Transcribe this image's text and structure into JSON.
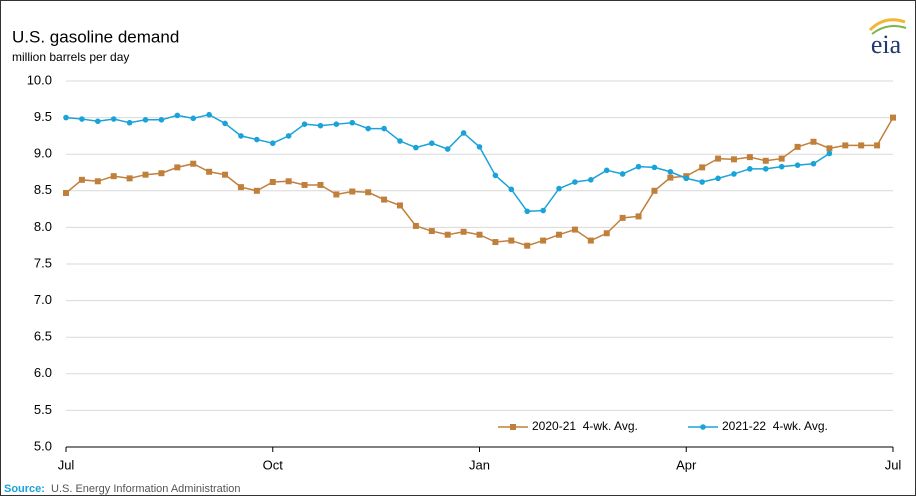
{
  "chart_data": {
    "type": "line",
    "title": "U.S. gasoline demand",
    "subtitle": "million barrels per day",
    "logo": "eia",
    "source_label": "Source:",
    "source": "U.S. Energy Information Administration",
    "categories": [
      "Jul",
      null,
      null,
      null,
      null,
      null,
      null,
      null,
      null,
      null,
      null,
      null,
      null,
      "Oct",
      null,
      null,
      null,
      null,
      null,
      null,
      null,
      null,
      null,
      null,
      null,
      null,
      "Jan",
      null,
      null,
      null,
      null,
      null,
      null,
      null,
      null,
      null,
      null,
      null,
      null,
      "Apr",
      null,
      null,
      null,
      null,
      null,
      null,
      null,
      null,
      null,
      null,
      null,
      null,
      "Jul"
    ],
    "series": [
      {
        "name": "2020-21  4-wk. Avg.",
        "color": "#c0803c",
        "marker": "square",
        "values": [
          8.47,
          8.65,
          8.63,
          8.7,
          8.67,
          8.72,
          8.74,
          8.82,
          8.87,
          8.76,
          8.72,
          8.55,
          8.5,
          8.62,
          8.63,
          8.58,
          8.58,
          8.45,
          8.49,
          8.48,
          8.38,
          8.3,
          8.02,
          7.95,
          7.9,
          7.94,
          7.9,
          7.8,
          7.82,
          7.75,
          7.82,
          7.9,
          7.97,
          7.82,
          7.92,
          8.13,
          8.15,
          8.5,
          8.68,
          8.7,
          8.82,
          8.94,
          8.93,
          8.96,
          8.91,
          8.94,
          9.1,
          9.17,
          9.08,
          9.12,
          9.12,
          9.12,
          9.5
        ]
      },
      {
        "name": "2021-22  4-wk. Avg.",
        "color": "#1aa3d8",
        "marker": "circle",
        "values": [
          9.5,
          9.48,
          9.45,
          9.48,
          9.43,
          9.47,
          9.47,
          9.53,
          9.49,
          9.54,
          9.42,
          9.25,
          9.2,
          9.15,
          9.25,
          9.41,
          9.39,
          9.41,
          9.43,
          9.35,
          9.35,
          9.18,
          9.09,
          9.15,
          9.07,
          9.29,
          9.1,
          8.71,
          8.52,
          8.22,
          8.23,
          8.53,
          8.62,
          8.65,
          8.78,
          8.73,
          8.83,
          8.82,
          8.76,
          8.67,
          8.62,
          8.67,
          8.73,
          8.8,
          8.8,
          8.83,
          8.85,
          8.87,
          9.01,
          null,
          null,
          null,
          null
        ]
      }
    ],
    "ylim": [
      5,
      10
    ],
    "yticks": [
      {
        "value": 5,
        "label": "5.0"
      },
      5.5,
      {
        "value": 6,
        "label": "6.0"
      },
      6.5,
      {
        "value": 7,
        "label": "7.0"
      },
      7.5,
      {
        "value": 8,
        "label": "8.0"
      },
      8.5,
      {
        "value": 9,
        "label": "9.0"
      },
      9.5,
      {
        "value": 10,
        "label": "10.0"
      }
    ],
    "grid": true,
    "legend": "lower right"
  }
}
